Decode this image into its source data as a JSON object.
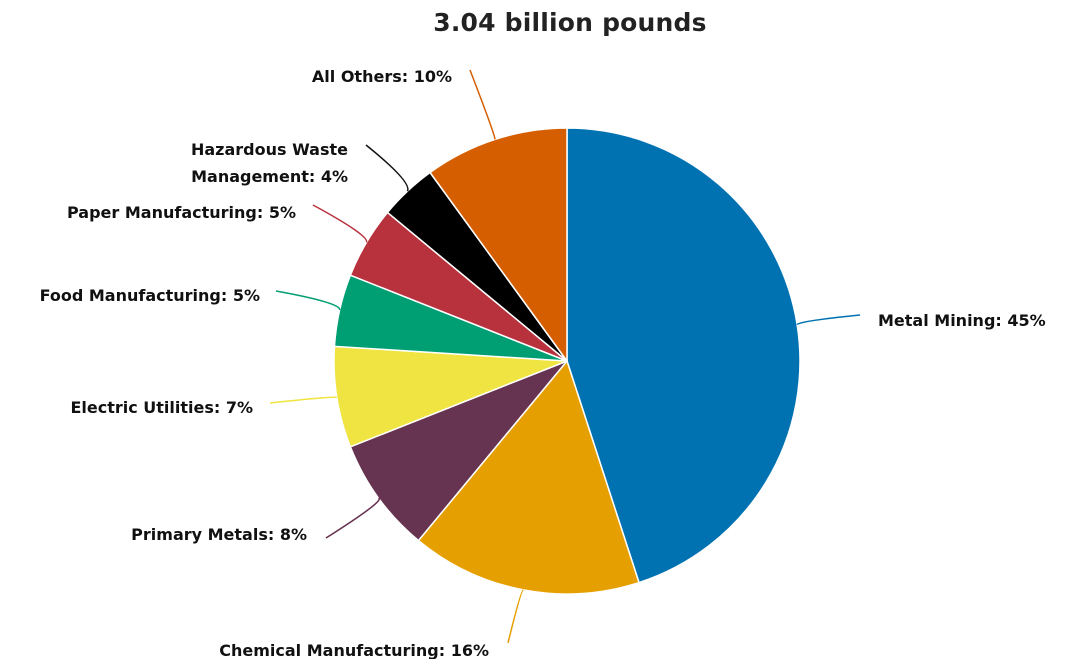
{
  "chart_data": {
    "type": "pie",
    "title": "3.04 billion pounds",
    "slices": [
      {
        "label": "Metal Mining",
        "value": 45,
        "display": "Metal Mining: 45%",
        "color": "#0072b2"
      },
      {
        "label": "Chemical Manufacturing",
        "value": 16,
        "display": "Chemical Manufacturing: 16%",
        "color": "#e69f00"
      },
      {
        "label": "Primary Metals",
        "value": 8,
        "display": "Primary Metals: 8%",
        "color": "#663350"
      },
      {
        "label": "Electric Utilities",
        "value": 7,
        "display": "Electric Utilities: 7%",
        "color": "#f0e442"
      },
      {
        "label": "Food Manufacturing",
        "value": 5,
        "display": "Food Manufacturing: 5%",
        "color": "#009e73"
      },
      {
        "label": "Paper Manufacturing",
        "value": 5,
        "display": "Paper Manufacturing: 5%",
        "color": "#b8323e"
      },
      {
        "label": "Hazardous Waste Management",
        "value": 4,
        "display": "Hazardous Waste Management: 4%",
        "display_lines": [
          "Hazardous Waste",
          "Management: 4%"
        ],
        "color": "#000000"
      },
      {
        "label": "All Others",
        "value": 10,
        "display": "All Others: 10%",
        "color": "#d55e00"
      }
    ]
  }
}
